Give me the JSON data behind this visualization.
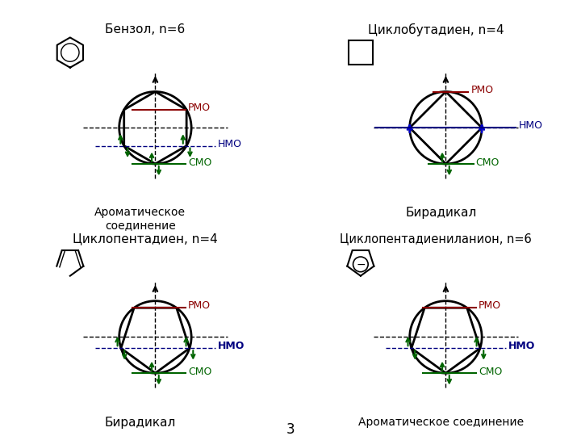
{
  "title_benzene": "Бензол, n=6",
  "title_cyclobutadiene": "Циклобутадиен, n=4",
  "title_cyclopentadiene": "Циклопентадиен, n=4",
  "title_cyclopentadienyl": "Циклопентадиениланион, n=6",
  "label_aromatic": "Ароматическое\nсоединение",
  "label_aromatic2": "Ароматическое соединение",
  "label_biradical": "Бирадикал",
  "label_pmo": "РМО",
  "label_hmo": "НМО",
  "label_cmo": "СМО",
  "color_pmo": "#8B0000",
  "color_hmo": "#000080",
  "color_cmo": "#006400",
  "color_electron": "#006400",
  "color_black": "#000000",
  "color_blue": "#0000CD",
  "bg_color": "#FFFFFF",
  "page_number": "3",
  "title_fontsize": 11,
  "label_fontsize": 11,
  "mo_fontsize": 9
}
